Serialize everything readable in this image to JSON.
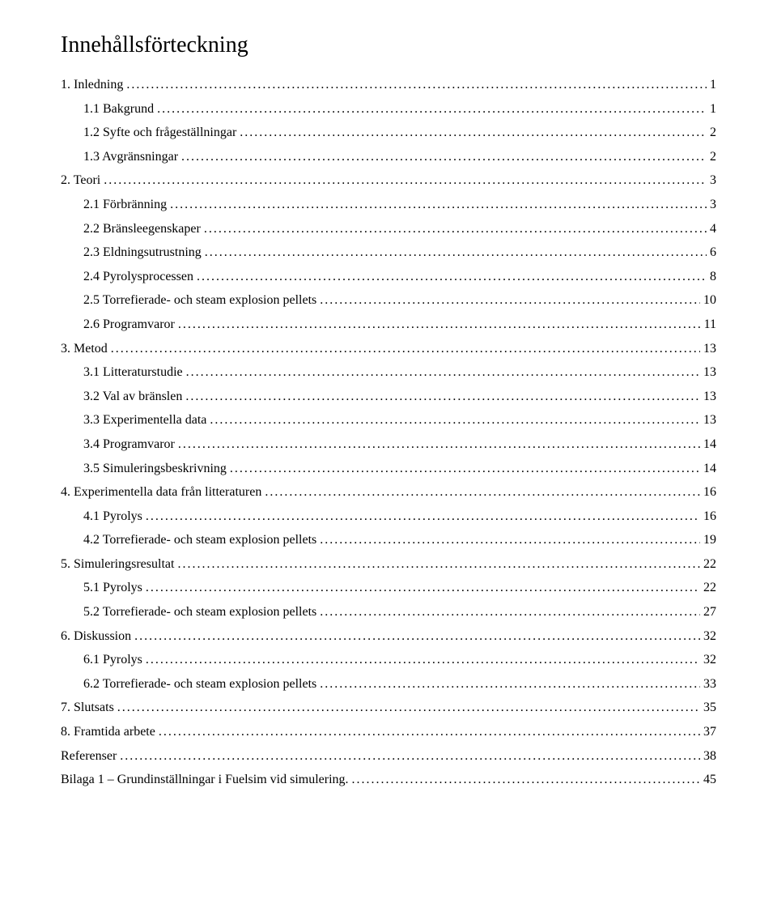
{
  "title": "Innehållsförteckning",
  "entries": [
    {
      "label": "1. Inledning",
      "page": "1",
      "indent": 0
    },
    {
      "label": "1.1 Bakgrund",
      "page": "1",
      "indent": 1
    },
    {
      "label": "1.2 Syfte och frågeställningar",
      "page": "2",
      "indent": 1
    },
    {
      "label": "1.3 Avgränsningar",
      "page": "2",
      "indent": 1
    },
    {
      "label": "2. Teori",
      "page": "3",
      "indent": 0
    },
    {
      "label": "2.1 Förbränning",
      "page": "3",
      "indent": 1
    },
    {
      "label": "2.2 Bränsleegenskaper",
      "page": "4",
      "indent": 1
    },
    {
      "label": "2.3 Eldningsutrustning",
      "page": "6",
      "indent": 1
    },
    {
      "label": "2.4 Pyrolysprocessen",
      "page": "8",
      "indent": 1
    },
    {
      "label": "2.5 Torrefierade- och steam explosion pellets",
      "page": "10",
      "indent": 1
    },
    {
      "label": "2.6 Programvaror",
      "page": "11",
      "indent": 1
    },
    {
      "label": "3. Metod",
      "page": "13",
      "indent": 0
    },
    {
      "label": "3.1 Litteraturstudie",
      "page": "13",
      "indent": 1
    },
    {
      "label": "3.2 Val av bränslen",
      "page": "13",
      "indent": 1
    },
    {
      "label": "3.3 Experimentella data",
      "page": "13",
      "indent": 1
    },
    {
      "label": "3.4 Programvaror",
      "page": "14",
      "indent": 1
    },
    {
      "label": "3.5 Simuleringsbeskrivning",
      "page": "14",
      "indent": 1
    },
    {
      "label": "4. Experimentella data från litteraturen",
      "page": "16",
      "indent": 0
    },
    {
      "label": "4.1 Pyrolys",
      "page": "16",
      "indent": 1
    },
    {
      "label": "4.2 Torrefierade- och steam explosion pellets",
      "page": "19",
      "indent": 1
    },
    {
      "label": "5. Simuleringsresultat",
      "page": "22",
      "indent": 0
    },
    {
      "label": "5.1 Pyrolys",
      "page": "22",
      "indent": 1
    },
    {
      "label": "5.2 Torrefierade- och steam explosion pellets",
      "page": "27",
      "indent": 1
    },
    {
      "label": "6. Diskussion",
      "page": "32",
      "indent": 0
    },
    {
      "label": "6.1 Pyrolys",
      "page": "32",
      "indent": 1
    },
    {
      "label": "6.2 Torrefierade- och steam explosion pellets",
      "page": "33",
      "indent": 1
    },
    {
      "label": "7. Slutsats",
      "page": "35",
      "indent": 0
    },
    {
      "label": "8. Framtida arbete",
      "page": "37",
      "indent": 0
    },
    {
      "label": "Referenser",
      "page": "38",
      "indent": 0
    },
    {
      "label": "Bilaga 1 – Grundinställningar i Fuelsim vid simulering.",
      "page": "45",
      "indent": 0
    }
  ]
}
